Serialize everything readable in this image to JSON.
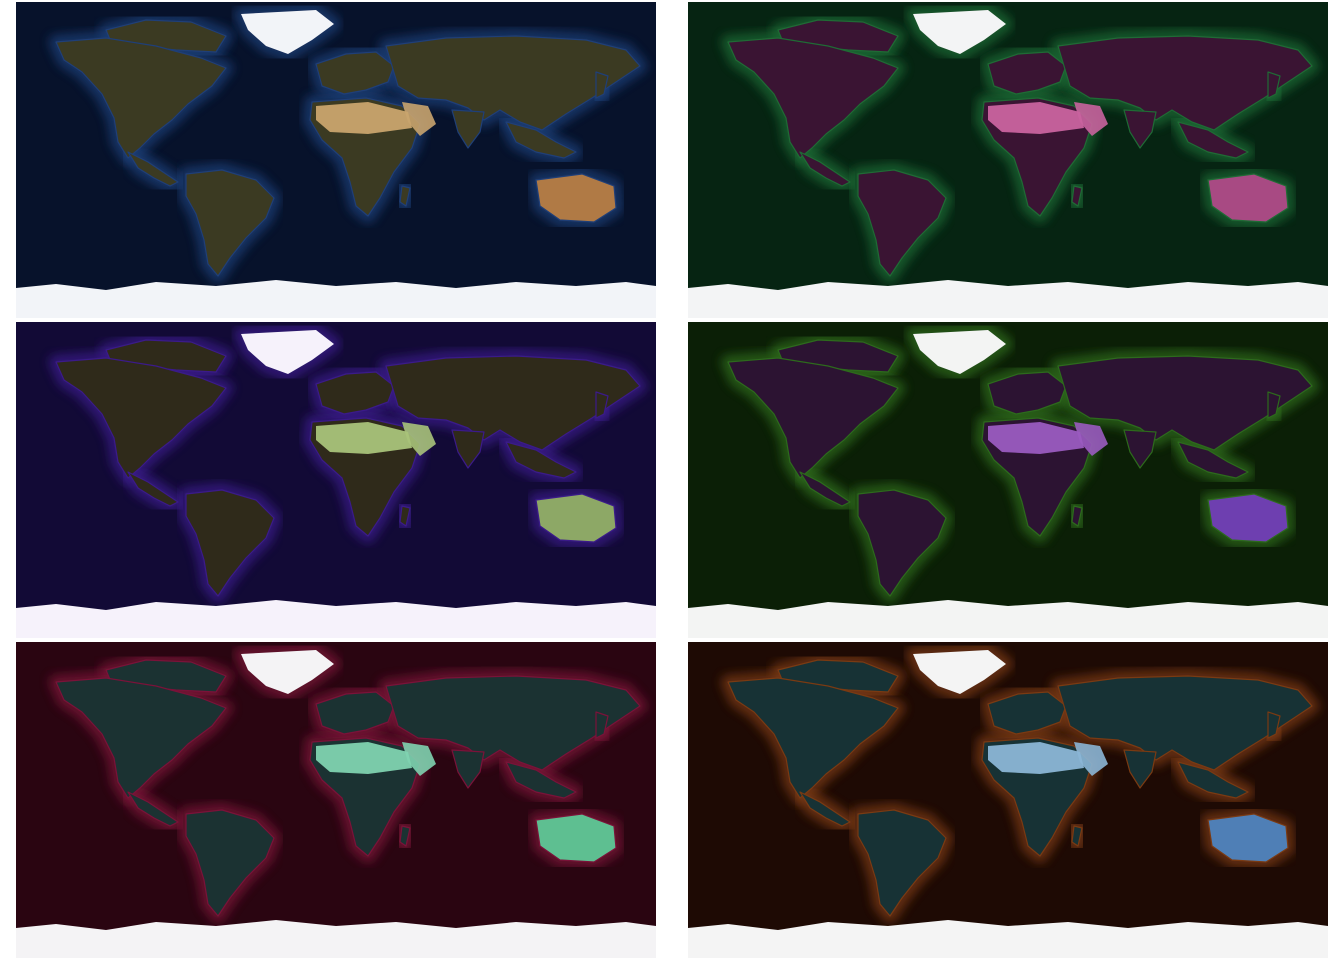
{
  "figure": {
    "panels": [
      {
        "id": "p0",
        "name": "natural-color-map",
        "ocean": "#07122b",
        "shelf": "#1f3f78",
        "land": "#3b3a22",
        "desert": "#c9a46e",
        "australia": "#b07a45",
        "ice": "#f2f4f8"
      },
      {
        "id": "p1",
        "name": "green-magenta-map",
        "ocean": "#062412",
        "shelf": "#1f6b35",
        "land": "#3a1433",
        "desert": "#c9639f",
        "australia": "#a84a83",
        "ice": "#f3f4f5"
      },
      {
        "id": "p2",
        "name": "purple-green-map",
        "ocean": "#120a36",
        "shelf": "#3b1a8a",
        "land": "#2f2a1a",
        "desert": "#a9c37a",
        "australia": "#8da866",
        "ice": "#f6f2fb"
      },
      {
        "id": "p3",
        "name": "green-violet-map",
        "ocean": "#0b1f06",
        "shelf": "#2d6a1c",
        "land": "#2c1332",
        "desert": "#9a5bc0",
        "australia": "#6e3fb0",
        "ice": "#f3f4f3"
      },
      {
        "id": "p4",
        "name": "crimson-teal-map",
        "ocean": "#2a0511",
        "shelf": "#7a1239",
        "land": "#1b3232",
        "desert": "#7fd3b0",
        "australia": "#5ebf91",
        "ice": "#f4f3f5"
      },
      {
        "id": "p5",
        "name": "brown-blue-map",
        "ocean": "#1e0a04",
        "shelf": "#7a3a12",
        "land": "#173235",
        "desert": "#8bb6d6",
        "australia": "#4f7fb6",
        "ice": "#f4f4f4"
      }
    ]
  }
}
